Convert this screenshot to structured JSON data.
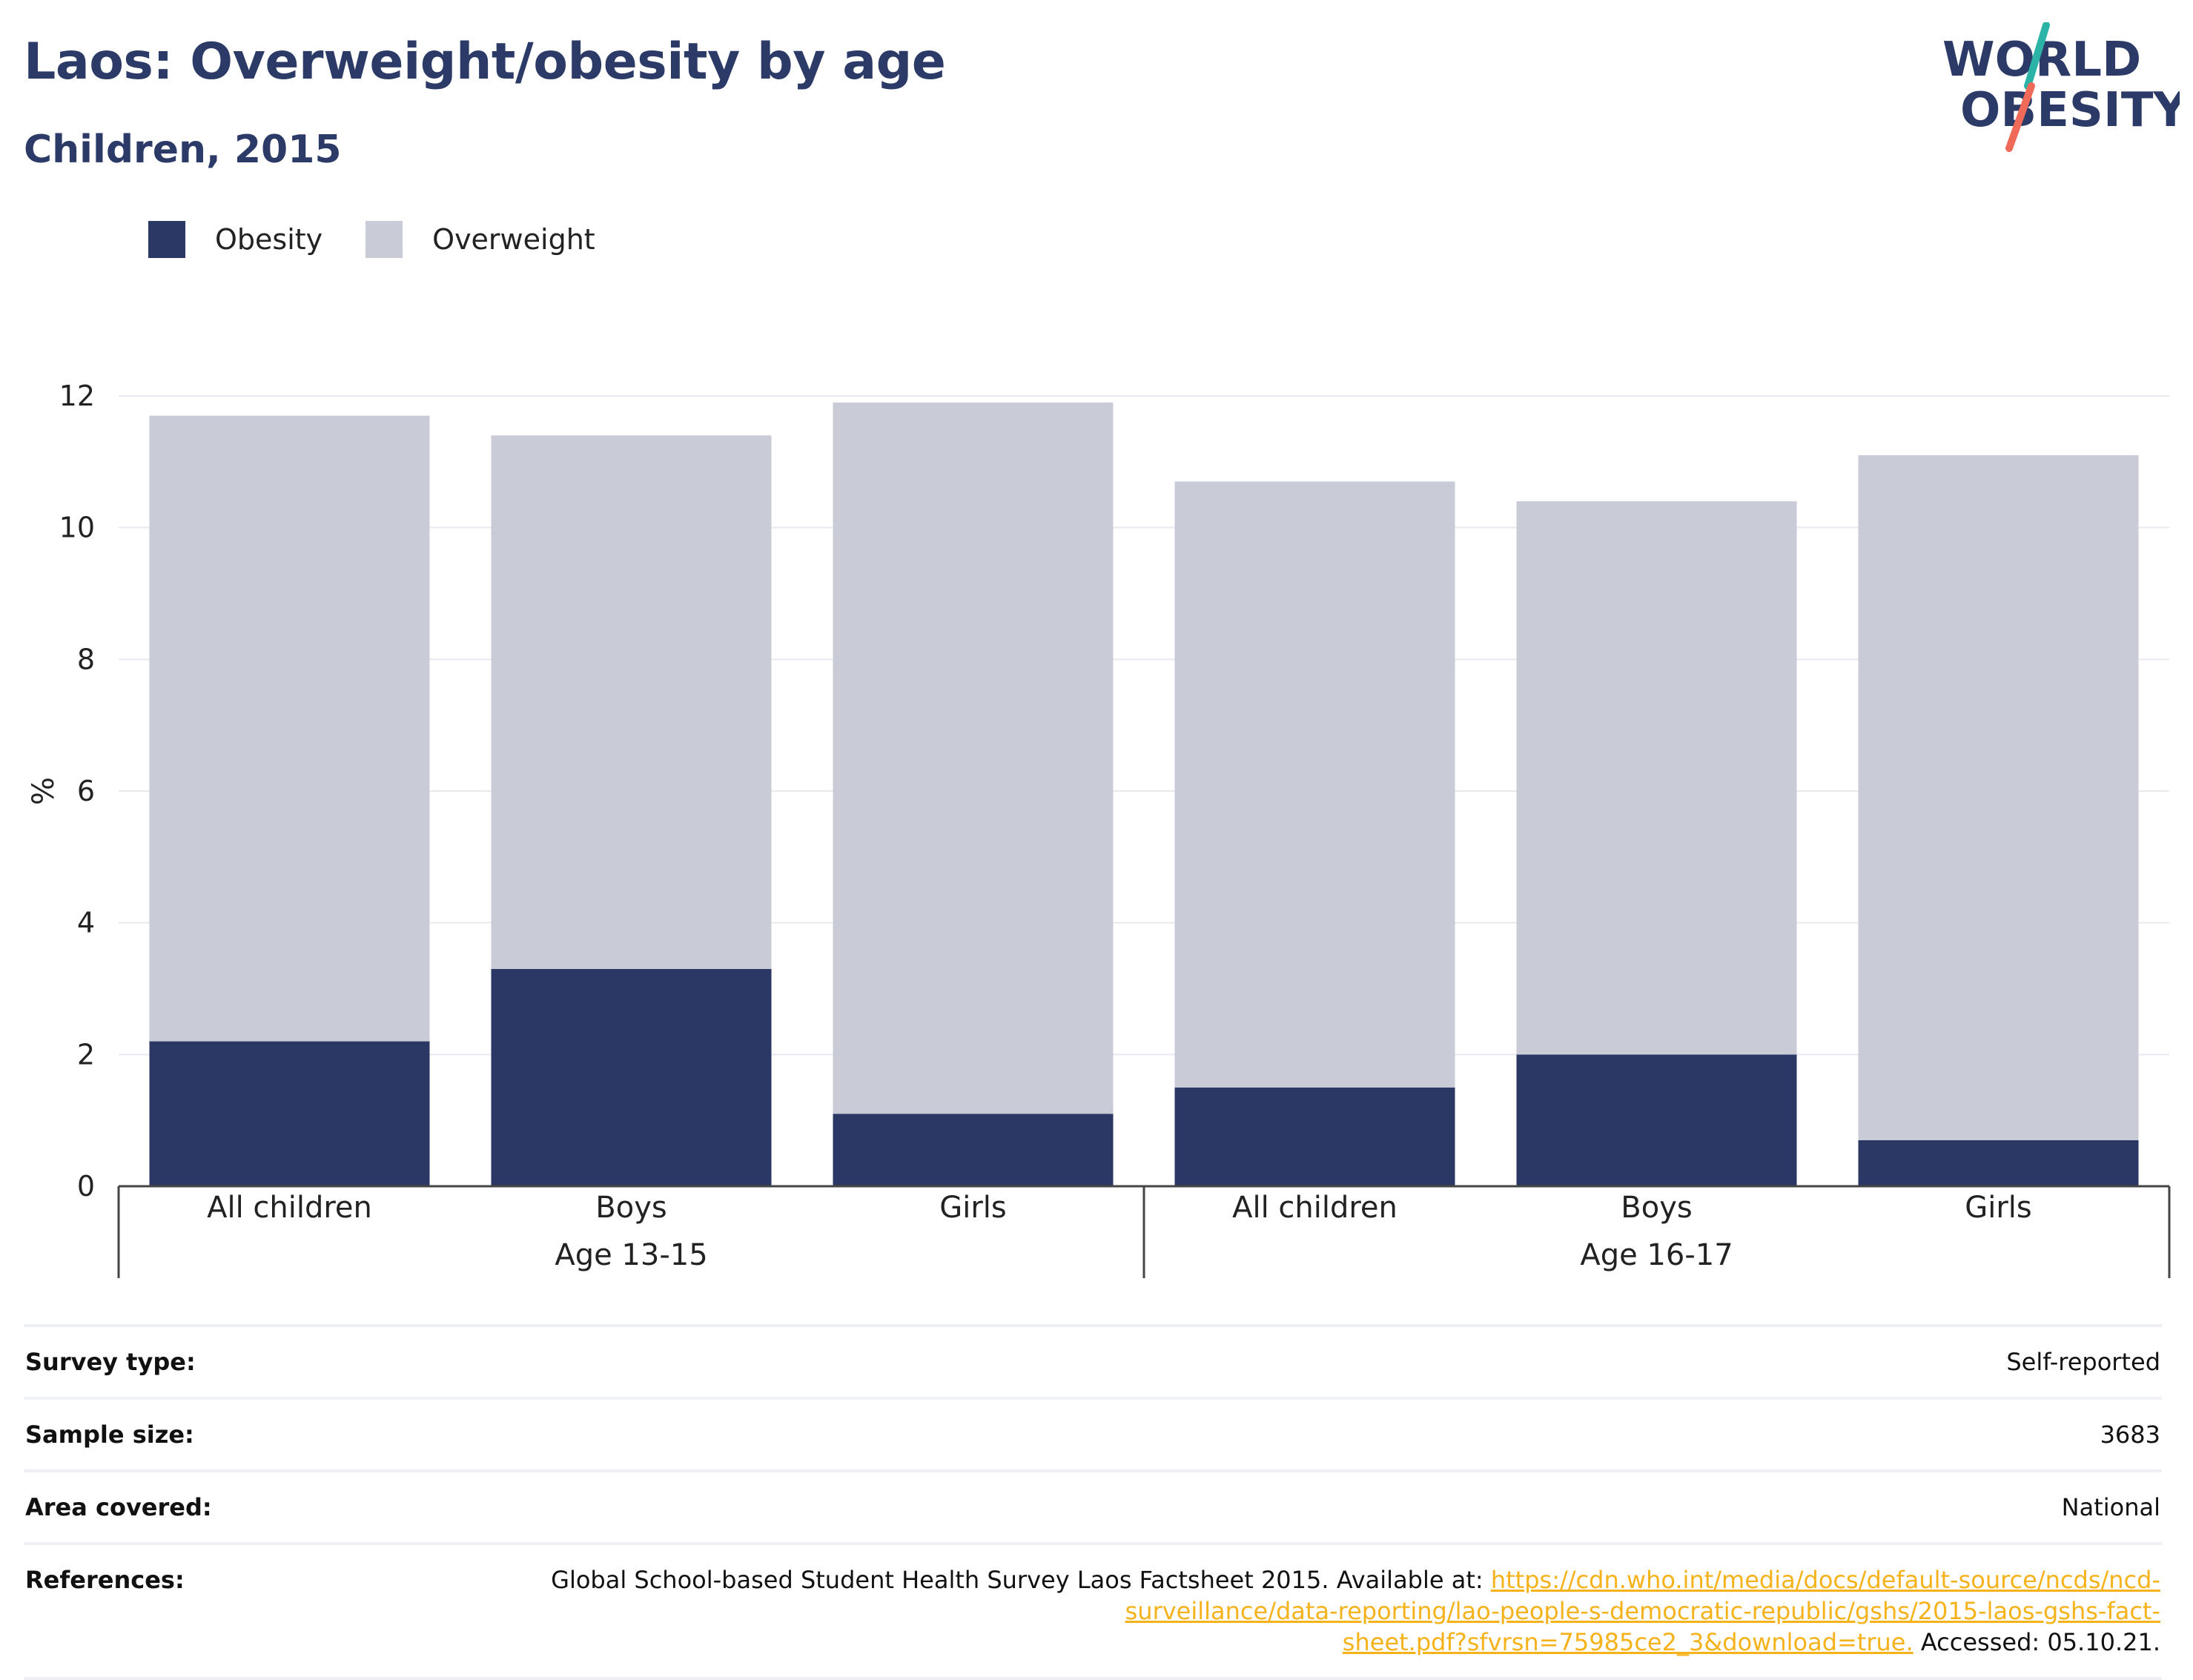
{
  "header": {
    "title": "Laos: Overweight/obesity by age",
    "subtitle": "Children, 2015"
  },
  "logo": {
    "line1": "WORLD",
    "line2": "OBESITY",
    "slash_colors": [
      "#2ab3a6",
      "#f06a5a"
    ],
    "text_color": "#2b3a67"
  },
  "legend": [
    {
      "label": "Obesity",
      "color": "#2b3764"
    },
    {
      "label": "Overweight",
      "color": "#c9cbd7"
    }
  ],
  "chart_data": {
    "type": "bar",
    "stacked": true,
    "title": "",
    "ylabel": "%",
    "ylim": [
      0,
      12
    ],
    "yticks": [
      0,
      2,
      4,
      6,
      8,
      10,
      12
    ],
    "grid": true,
    "legend_position": "top-left",
    "categories": [
      "All children",
      "Boys",
      "Girls",
      "All children",
      "Boys",
      "Girls"
    ],
    "groups": [
      {
        "label": "Age 13-15",
        "span": 3
      },
      {
        "label": "Age 16-17",
        "span": 3
      }
    ],
    "series": [
      {
        "name": "Obesity",
        "color": "#2b3764",
        "values": [
          2.2,
          3.3,
          1.1,
          1.5,
          2.0,
          0.7
        ]
      },
      {
        "name": "Overweight",
        "color": "#c9cbd7",
        "values": [
          9.5,
          8.1,
          10.8,
          9.2,
          8.4,
          10.4
        ]
      }
    ]
  },
  "info": {
    "survey_type_label": "Survey type:",
    "survey_type": "Self-reported",
    "sample_size_label": "Sample size:",
    "sample_size": "3683",
    "area_covered_label": "Area covered:",
    "area_covered": "National",
    "references_label": "References:",
    "ref_text_1": "Global School-based Student Health Survey Laos Factsheet 2015. Available at:",
    "ref_link_1": "https://cdn.who.int/media/docs/default-source/ncds/ncd-",
    "ref_link_2": "surveillance/data-reporting/lao-people-s-democratic-republic/gshs/2015-laos-gshs-fact-",
    "ref_link_3": "sheet.pdf?sfvrsn=75985ce2_3&download=true.",
    "ref_text_2": "Accessed: 05.10.21."
  }
}
